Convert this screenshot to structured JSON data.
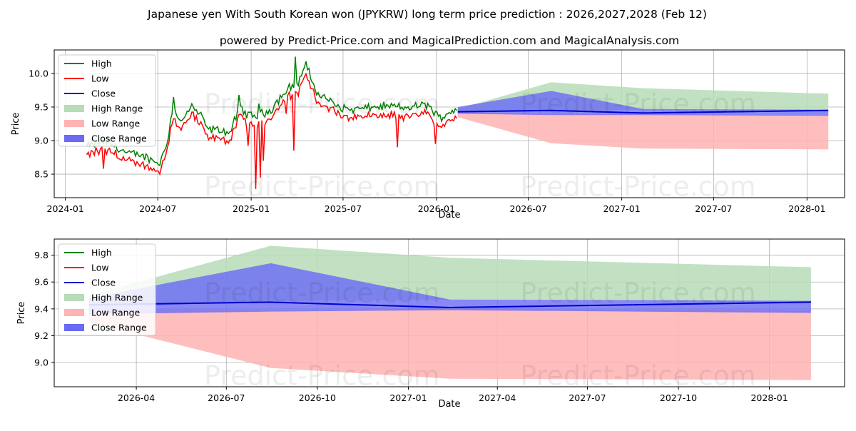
{
  "title": "Japanese yen With South Korean won (JPYKRW) long term price prediction : 2026,2027,2028 (Feb 12)",
  "subtitle": "powered by Predict-Price.com and MagicalPrediction.com and MagicalAnalysis.com",
  "watermark": "Predict-Price.com",
  "colors": {
    "high": "#008000",
    "low": "#ff0000",
    "close": "#0000cc",
    "high_range": "#b7dcb7",
    "low_range": "#ffb3b3",
    "close_range": "#6a6af5"
  },
  "chart_data": [
    {
      "type": "line",
      "panel": "top",
      "xlabel": "Date",
      "ylabel": "Price",
      "xlim": [
        "2023-12-10",
        "2028-03-15"
      ],
      "ylim": [
        8.15,
        10.35
      ],
      "x_ticks": [
        {
          "date": "2024-01-01",
          "label": "2024-01"
        },
        {
          "date": "2024-07-01",
          "label": "2024-07"
        },
        {
          "date": "2025-01-01",
          "label": "2025-01"
        },
        {
          "date": "2025-07-01",
          "label": "2025-07"
        },
        {
          "date": "2026-01-01",
          "label": "2026-01"
        },
        {
          "date": "2026-07-01",
          "label": "2026-07"
        },
        {
          "date": "2027-01-01",
          "label": "2027-01"
        },
        {
          "date": "2027-07-01",
          "label": "2027-07"
        },
        {
          "date": "2028-01-01",
          "label": "2028-01"
        }
      ],
      "y_ticks": [
        {
          "value": 8.5,
          "label": "8.5"
        },
        {
          "value": 9.0,
          "label": "9.0"
        },
        {
          "value": 9.5,
          "label": "9.5"
        },
        {
          "value": 10.0,
          "label": "10.0"
        }
      ],
      "legend": [
        "High",
        "Low",
        "Close",
        "High Range",
        "Low Range",
        "Close Range"
      ],
      "legend_position": "top-left",
      "history_anchors": [
        [
          "2024-02-12",
          8.85
        ],
        [
          "2024-03-01",
          8.9
        ],
        [
          "2024-03-20",
          8.92
        ],
        [
          "2024-04-10",
          8.85
        ],
        [
          "2024-05-01",
          8.75
        ],
        [
          "2024-06-01",
          8.72
        ],
        [
          "2024-06-20",
          8.65
        ],
        [
          "2024-07-05",
          8.6
        ],
        [
          "2024-07-20",
          8.95
        ],
        [
          "2024-07-31",
          9.45
        ],
        [
          "2024-08-15",
          9.2
        ],
        [
          "2024-09-05",
          9.45
        ],
        [
          "2024-09-20",
          9.35
        ],
        [
          "2024-10-10",
          9.1
        ],
        [
          "2024-11-01",
          9.1
        ],
        [
          "2024-11-20",
          9.05
        ],
        [
          "2024-12-10",
          9.45
        ],
        [
          "2024-12-20",
          9.35
        ],
        [
          "2025-01-05",
          9.3
        ],
        [
          "2025-01-25",
          9.35
        ],
        [
          "2025-02-10",
          9.4
        ],
        [
          "2025-03-01",
          9.6
        ],
        [
          "2025-03-20",
          9.75
        ],
        [
          "2025-04-05",
          9.8
        ],
        [
          "2025-04-15",
          10.05
        ],
        [
          "2025-04-25",
          9.95
        ],
        [
          "2025-05-10",
          9.65
        ],
        [
          "2025-06-01",
          9.55
        ],
        [
          "2025-06-20",
          9.45
        ],
        [
          "2025-07-15",
          9.4
        ],
        [
          "2025-08-15",
          9.42
        ],
        [
          "2025-09-15",
          9.45
        ],
        [
          "2025-10-10",
          9.45
        ],
        [
          "2025-10-30",
          9.42
        ],
        [
          "2025-11-20",
          9.45
        ],
        [
          "2025-12-15",
          9.48
        ],
        [
          "2026-01-05",
          9.28
        ],
        [
          "2026-01-25",
          9.35
        ],
        [
          "2026-02-12",
          9.43
        ]
      ],
      "dips": [
        [
          "2024-03-15",
          8.58
        ],
        [
          "2024-07-05",
          8.5
        ],
        [
          "2024-12-25",
          8.92
        ],
        [
          "2025-01-10",
          8.28
        ],
        [
          "2025-01-18",
          8.45
        ],
        [
          "2025-01-25",
          8.7
        ],
        [
          "2025-03-10",
          9.4
        ],
        [
          "2025-03-25",
          8.85
        ],
        [
          "2025-10-15",
          8.9
        ],
        [
          "2025-12-30",
          8.95
        ]
      ],
      "spikes": [
        [
          "2024-08-01",
          9.65
        ],
        [
          "2024-12-08",
          9.68
        ],
        [
          "2025-01-15",
          9.55
        ],
        [
          "2025-03-28",
          10.25
        ],
        [
          "2025-04-18",
          10.18
        ]
      ],
      "forecast": {
        "dates": [
          "2026-02-12",
          "2026-08-15",
          "2027-02-12",
          "2028-02-12"
        ],
        "high_range_upper": [
          9.47,
          9.87,
          9.78,
          9.7
        ],
        "high_range_lower": [
          9.43,
          9.45,
          9.46,
          9.45
        ],
        "low_range_upper": [
          9.43,
          9.4,
          9.39,
          9.38
        ],
        "low_range_lower": [
          9.35,
          8.96,
          8.88,
          8.87
        ],
        "close_range_upper": [
          9.5,
          9.74,
          9.47,
          9.46
        ],
        "close_range_lower": [
          9.4,
          9.38,
          9.38,
          9.37
        ],
        "close": [
          9.43,
          9.45,
          9.41,
          9.45
        ]
      }
    },
    {
      "type": "line",
      "panel": "bottom",
      "xlabel": "Date",
      "ylabel": "Price",
      "xlim": [
        "2026-01-08",
        "2028-03-17"
      ],
      "ylim": [
        8.82,
        9.92
      ],
      "x_ticks": [
        {
          "date": "2026-04-01",
          "label": "2026-04"
        },
        {
          "date": "2026-07-01",
          "label": "2026-07"
        },
        {
          "date": "2026-10-01",
          "label": "2026-10"
        },
        {
          "date": "2027-01-01",
          "label": "2027-01"
        },
        {
          "date": "2027-04-01",
          "label": "2027-04"
        },
        {
          "date": "2027-07-01",
          "label": "2027-07"
        },
        {
          "date": "2027-10-01",
          "label": "2027-10"
        },
        {
          "date": "2028-01-01",
          "label": "2028-01"
        }
      ],
      "y_ticks": [
        {
          "value": 9.0,
          "label": "9.0"
        },
        {
          "value": 9.2,
          "label": "9.2"
        },
        {
          "value": 9.4,
          "label": "9.4"
        },
        {
          "value": 9.6,
          "label": "9.6"
        },
        {
          "value": 9.8,
          "label": "9.8"
        }
      ],
      "legend": [
        "High",
        "Low",
        "Close",
        "High Range",
        "Low Range",
        "Close Range"
      ],
      "legend_position": "top-left",
      "forecast": {
        "dates": [
          "2026-02-12",
          "2026-08-15",
          "2027-02-12",
          "2028-02-12"
        ],
        "high_range_upper": [
          9.5,
          9.87,
          9.78,
          9.71
        ],
        "high_range_lower": [
          9.4,
          9.46,
          9.47,
          9.45
        ],
        "low_range_upper": [
          9.4,
          9.39,
          9.4,
          9.39
        ],
        "low_range_lower": [
          9.3,
          8.96,
          8.88,
          8.87
        ],
        "close_range_upper": [
          9.48,
          9.74,
          9.47,
          9.46
        ],
        "close_range_lower": [
          9.36,
          9.38,
          9.39,
          9.37
        ],
        "close": [
          9.43,
          9.45,
          9.41,
          9.45
        ]
      }
    }
  ]
}
